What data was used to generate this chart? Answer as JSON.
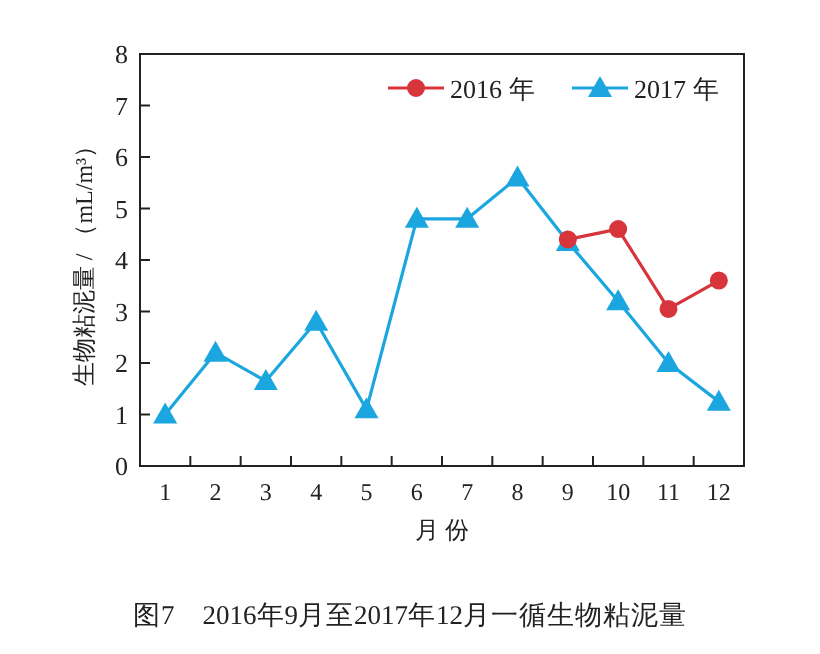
{
  "chart_data": {
    "type": "line",
    "title": "图7　2016年9月至2017年12月一循生物粘泥量",
    "xlabel": "月 份",
    "ylabel": "生物粘泥量 / （mL/m³）",
    "categories": [
      "1",
      "2",
      "3",
      "4",
      "5",
      "6",
      "7",
      "8",
      "9",
      "10",
      "11",
      "12"
    ],
    "series": [
      {
        "name": "2016 年",
        "color": "#d7353b",
        "marker": "circle",
        "values": [
          null,
          null,
          null,
          null,
          null,
          null,
          null,
          null,
          4.4,
          4.6,
          3.05,
          3.6
        ]
      },
      {
        "name": "2017 年",
        "color": "#1ba6df",
        "marker": "triangle",
        "values": [
          1.0,
          2.2,
          1.65,
          2.8,
          1.1,
          4.8,
          4.8,
          5.6,
          4.35,
          3.2,
          2.0,
          1.25
        ]
      }
    ],
    "ylim": [
      0,
      8
    ],
    "yticks": [
      0,
      1,
      2,
      3,
      4,
      5,
      6,
      7,
      8
    ],
    "legend": "top right",
    "grid": false
  }
}
